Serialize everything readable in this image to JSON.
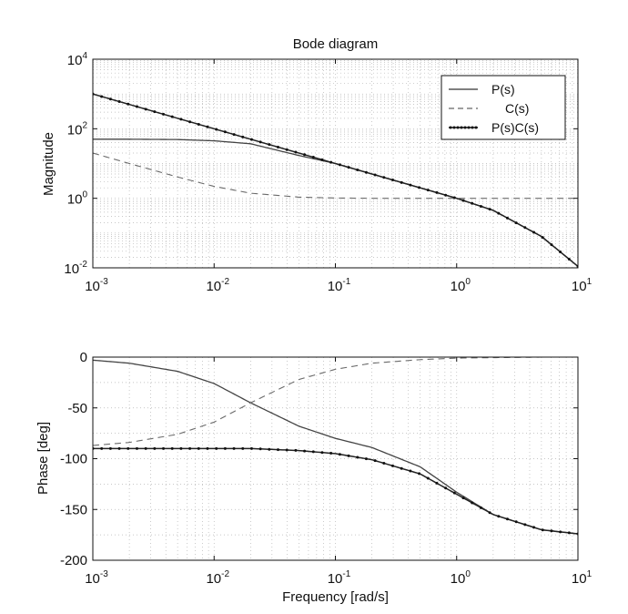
{
  "chart_data": [
    {
      "type": "line",
      "title": "Bode diagram",
      "xlabel": "",
      "ylabel": "Magnitude",
      "xscale": "log",
      "yscale": "log",
      "xlim": [
        0.001,
        10
      ],
      "ylim": [
        0.01,
        10000
      ],
      "grid": true,
      "legend_position": "top-right",
      "x_ticks": [
        {
          "value": 0.001,
          "base": "10",
          "exp": "-3"
        },
        {
          "value": 0.01,
          "base": "10",
          "exp": "-2"
        },
        {
          "value": 0.1,
          "base": "10",
          "exp": "-1"
        },
        {
          "value": 1,
          "base": "10",
          "exp": "0"
        },
        {
          "value": 10,
          "base": "10",
          "exp": "1"
        }
      ],
      "y_ticks": [
        {
          "value": 0.01,
          "base": "10",
          "exp": "-2"
        },
        {
          "value": 1,
          "base": "10",
          "exp": "0"
        },
        {
          "value": 100,
          "base": "10",
          "exp": "2"
        },
        {
          "value": 10000,
          "base": "10",
          "exp": "4"
        }
      ],
      "series": [
        {
          "name": "P(s)",
          "style": "solid",
          "x": [
            0.001,
            0.002,
            0.005,
            0.01,
            0.02,
            0.05,
            0.1,
            0.2,
            0.5,
            1,
            2,
            5,
            10
          ],
          "y": [
            50,
            50,
            49,
            45,
            37,
            17,
            10,
            5,
            2,
            1,
            0.45,
            0.08,
            0.011
          ]
        },
        {
          "name": "C(s)",
          "style": "dashed",
          "x": [
            0.001,
            0.002,
            0.005,
            0.01,
            0.02,
            0.05,
            0.1,
            0.2,
            0.5,
            1,
            2,
            5,
            10
          ],
          "y": [
            20,
            10,
            4.1,
            2.2,
            1.4,
            1.08,
            1.02,
            1,
            1,
            1,
            1,
            1,
            1
          ]
        },
        {
          "name": "P(s)C(s)",
          "style": "solid-markers",
          "x": [
            0.001,
            0.002,
            0.005,
            0.01,
            0.02,
            0.05,
            0.1,
            0.2,
            0.5,
            1,
            2,
            5,
            10
          ],
          "y": [
            1000,
            500,
            200,
            100,
            50,
            20,
            10,
            5,
            2,
            1,
            0.45,
            0.08,
            0.011
          ]
        }
      ]
    },
    {
      "type": "line",
      "title": "",
      "xlabel": "Frequency [rad/s]",
      "ylabel": "Phase [deg]",
      "xscale": "log",
      "xlim": [
        0.001,
        10
      ],
      "ylim": [
        -200,
        0
      ],
      "grid": true,
      "x_ticks": [
        {
          "value": 0.001,
          "base": "10",
          "exp": "-3"
        },
        {
          "value": 0.01,
          "base": "10",
          "exp": "-2"
        },
        {
          "value": 0.1,
          "base": "10",
          "exp": "-1"
        },
        {
          "value": 1,
          "base": "10",
          "exp": "0"
        },
        {
          "value": 10,
          "base": "10",
          "exp": "1"
        }
      ],
      "y_ticks": [
        {
          "value": 0,
          "label": "0"
        },
        {
          "value": -50,
          "label": "-50"
        },
        {
          "value": -100,
          "label": "-100"
        },
        {
          "value": -150,
          "label": "-150"
        },
        {
          "value": -200,
          "label": "-200"
        }
      ],
      "series": [
        {
          "name": "P(s)",
          "style": "solid",
          "x": [
            0.001,
            0.002,
            0.005,
            0.01,
            0.02,
            0.05,
            0.1,
            0.2,
            0.5,
            1,
            2,
            5,
            10
          ],
          "y": [
            -3,
            -6,
            -14,
            -26,
            -45,
            -68,
            -80,
            -89,
            -108,
            -133,
            -155,
            -170,
            -174
          ]
        },
        {
          "name": "C(s)",
          "style": "dashed",
          "x": [
            0.001,
            0.002,
            0.005,
            0.01,
            0.02,
            0.05,
            0.1,
            0.2,
            0.5,
            1,
            2,
            5,
            10
          ],
          "y": [
            -87,
            -84,
            -76,
            -64,
            -45,
            -22,
            -12,
            -6,
            -2.5,
            -1,
            -0.5,
            0,
            0
          ]
        },
        {
          "name": "P(s)C(s)",
          "style": "solid-markers",
          "x": [
            0.001,
            0.002,
            0.005,
            0.01,
            0.02,
            0.05,
            0.1,
            0.2,
            0.5,
            1,
            2,
            5,
            10
          ],
          "y": [
            -90,
            -90,
            -90,
            -90,
            -90,
            -92,
            -95,
            -101,
            -115,
            -135,
            -155,
            -170,
            -174
          ]
        }
      ]
    }
  ]
}
